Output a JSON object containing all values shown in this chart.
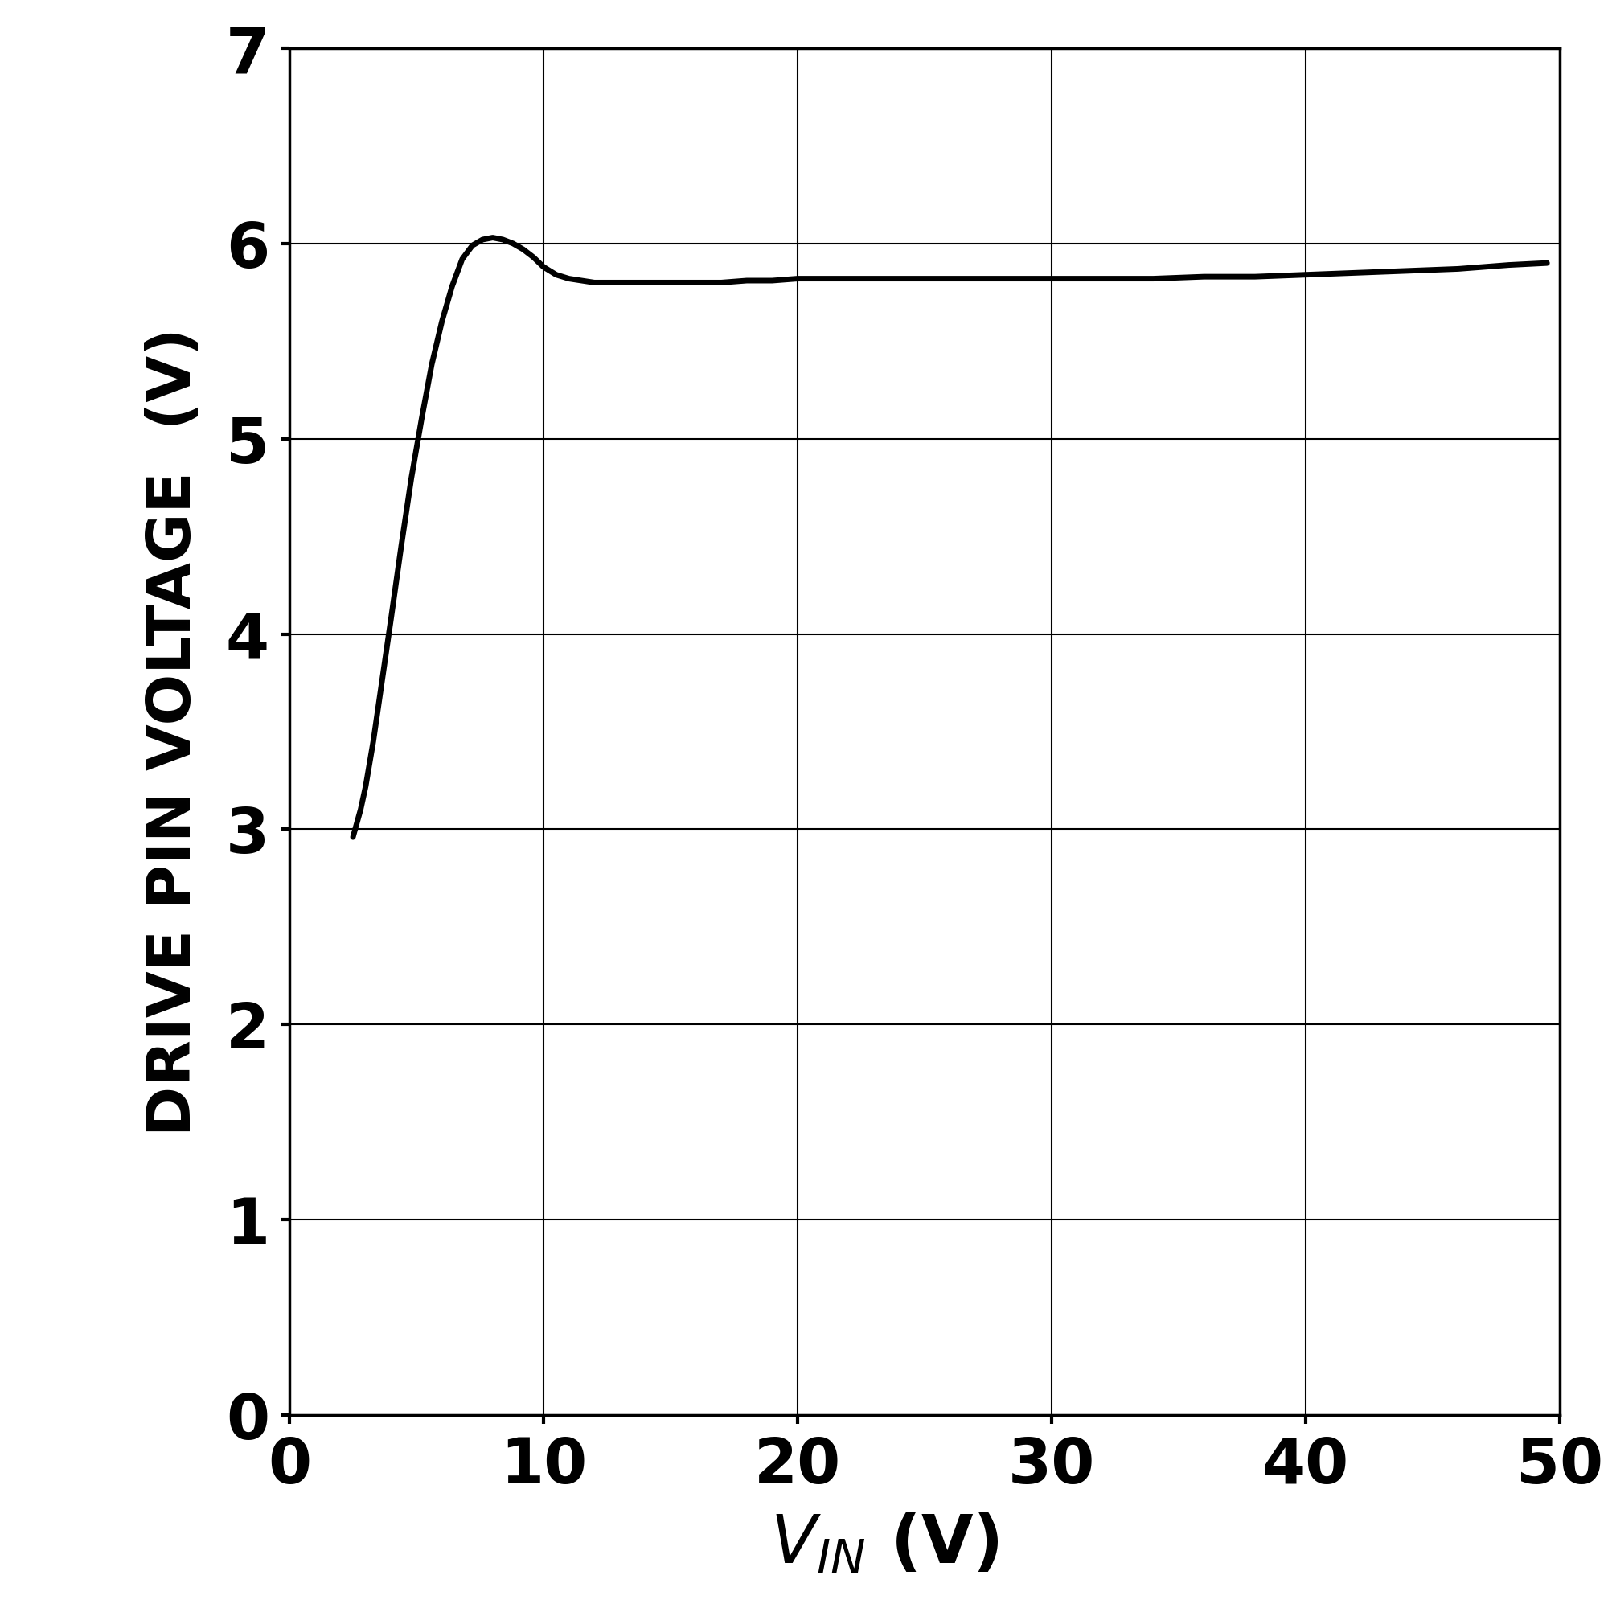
{
  "xlabel_main": "V",
  "xlabel_sub": "IN",
  "xlabel_unit": " (V)",
  "ylabel": "DRIVE PIN VOLTAGE  (V)",
  "xlim": [
    0,
    50
  ],
  "ylim": [
    0,
    7
  ],
  "xticks": [
    0,
    10,
    20,
    30,
    40,
    50
  ],
  "yticks": [
    0,
    1,
    2,
    3,
    4,
    5,
    6,
    7
  ],
  "line_color": "#000000",
  "line_width": 5.0,
  "background_color": "#ffffff",
  "grid_color": "#000000",
  "curve_x": [
    2.5,
    2.8,
    3.0,
    3.3,
    3.6,
    4.0,
    4.4,
    4.8,
    5.2,
    5.6,
    6.0,
    6.4,
    6.8,
    7.2,
    7.6,
    8.0,
    8.4,
    8.8,
    9.2,
    9.6,
    10.0,
    10.5,
    11.0,
    11.5,
    12.0,
    13.0,
    14.0,
    15.0,
    16.0,
    17.0,
    18.0,
    19.0,
    20.0,
    22.0,
    24.0,
    26.0,
    28.0,
    30.0,
    32.0,
    34.0,
    36.0,
    38.0,
    40.0,
    42.0,
    44.0,
    46.0,
    48.0,
    49.5
  ],
  "curve_y": [
    2.96,
    3.1,
    3.22,
    3.45,
    3.72,
    4.08,
    4.45,
    4.8,
    5.1,
    5.38,
    5.6,
    5.78,
    5.92,
    5.99,
    6.02,
    6.03,
    6.02,
    6.0,
    5.97,
    5.93,
    5.88,
    5.84,
    5.82,
    5.81,
    5.8,
    5.8,
    5.8,
    5.8,
    5.8,
    5.8,
    5.81,
    5.81,
    5.82,
    5.82,
    5.82,
    5.82,
    5.82,
    5.82,
    5.82,
    5.82,
    5.83,
    5.83,
    5.84,
    5.85,
    5.86,
    5.87,
    5.89,
    5.9
  ]
}
